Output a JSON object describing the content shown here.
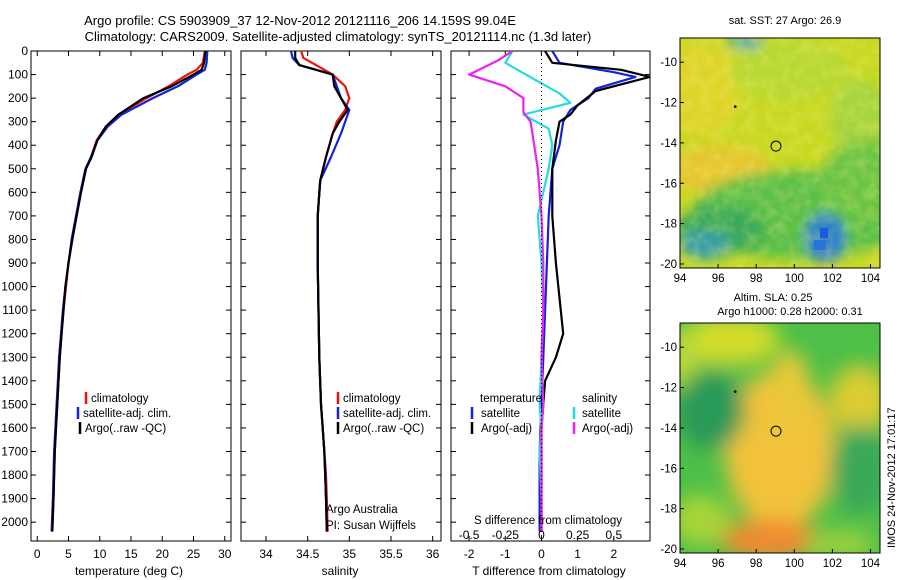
{
  "header": {
    "line1": "Argo profile: CS 5903909_37 12-Nov-2012 20121116_206 14.159S 99.04E",
    "line2": "Climatology: CARS2009. Satellite-adjusted climatology: synTS_20121114.nc (1.3d later)"
  },
  "colors": {
    "climatology": "#ee1111",
    "satellite": "#1122dd",
    "argo": "#000000",
    "sat_salt": "#22dddd",
    "argo_salt": "#ee22ee"
  },
  "side_label": "IMOS 24-Nov-2012 17:01:17",
  "chart_data": [
    {
      "type": "line",
      "id": "temperature-profile",
      "xlabel": "temperature (deg C)",
      "ylabel": "",
      "xlim": [
        -1,
        31
      ],
      "ylim": [
        2080,
        0
      ],
      "xticks": [
        0,
        5,
        10,
        15,
        20,
        25,
        30
      ],
      "yticks": [
        0,
        100,
        200,
        300,
        400,
        500,
        600,
        700,
        800,
        900,
        1000,
        1100,
        1200,
        1300,
        1400,
        1500,
        1600,
        1700,
        1800,
        1900,
        2000
      ],
      "legend": [
        "climatology",
        "satellite-adj. clim.",
        "Argo(..raw -QC)"
      ],
      "legend_placement": "lower-right",
      "series": [
        {
          "name": "climatology",
          "x": [
            26.8,
            26.5,
            25.5,
            24.0,
            21.0,
            17.5,
            13.0,
            11.0,
            9.5,
            8.6,
            7.8,
            7.0,
            6.3,
            5.6,
            5.0,
            4.6,
            4.2,
            3.9,
            3.6,
            3.4,
            3.2,
            3.0,
            2.8,
            2.6,
            2.4
          ],
          "y": [
            0,
            50,
            80,
            100,
            150,
            200,
            270,
            320,
            380,
            450,
            500,
            600,
            700,
            800,
            900,
            1000,
            1100,
            1200,
            1300,
            1400,
            1500,
            1600,
            1700,
            1900,
            2040
          ]
        },
        {
          "name": "satellite-adj. clim.",
          "x": [
            27.2,
            27.1,
            26.8,
            25.5,
            22.5,
            18.5,
            13.5,
            11.3,
            9.6,
            8.6,
            7.7,
            6.9,
            6.2,
            5.5,
            5.0,
            4.5,
            4.1,
            3.8,
            3.5,
            3.3,
            3.1,
            2.9,
            2.7,
            2.5,
            2.3
          ],
          "y": [
            0,
            50,
            80,
            100,
            150,
            200,
            270,
            320,
            380,
            450,
            500,
            600,
            700,
            800,
            900,
            1000,
            1100,
            1200,
            1300,
            1400,
            1500,
            1600,
            1700,
            1900,
            2040
          ]
        },
        {
          "name": "Argo(..raw -QC)",
          "x": [
            26.9,
            26.7,
            26.3,
            25.0,
            21.5,
            17.0,
            13.0,
            11.0,
            9.6,
            8.7,
            7.8,
            7.0,
            6.3,
            5.6,
            5.0,
            4.5,
            4.2,
            3.9,
            3.6,
            3.4,
            3.2,
            3.0,
            2.8,
            2.6,
            2.4
          ],
          "y": [
            0,
            50,
            80,
            100,
            150,
            200,
            270,
            320,
            380,
            450,
            500,
            600,
            700,
            800,
            900,
            1000,
            1100,
            1200,
            1300,
            1400,
            1500,
            1600,
            1700,
            1900,
            2040
          ]
        }
      ]
    },
    {
      "type": "line",
      "id": "salinity-profile",
      "xlabel": "salinity",
      "xlim": [
        33.7,
        36.1
      ],
      "ylim": [
        2080,
        0
      ],
      "xticks": [
        34,
        34.5,
        35,
        35.5,
        36
      ],
      "legend": [
        "climatology",
        "satellite-adj. clim.",
        "Argo(..raw -QC)"
      ],
      "legend_placement": "lower-right",
      "annotations": [
        "Argo Australia",
        "PI: Susan Wijffels"
      ],
      "series": [
        {
          "name": "climatology",
          "x": [
            34.42,
            34.45,
            34.6,
            34.8,
            34.95,
            35.0,
            34.95,
            34.85,
            34.8,
            34.72,
            34.65,
            34.62,
            34.62,
            34.63,
            34.64,
            34.66,
            34.68,
            34.7,
            34.72,
            34.73,
            34.74
          ],
          "y": [
            0,
            30,
            60,
            100,
            150,
            200,
            250,
            300,
            350,
            450,
            550,
            700,
            900,
            1100,
            1300,
            1500,
            1600,
            1700,
            1800,
            1900,
            2040
          ]
        },
        {
          "name": "satellite-adj. clim.",
          "x": [
            34.3,
            34.32,
            34.4,
            34.8,
            34.85,
            34.9,
            35.0,
            34.95,
            34.9,
            34.78,
            34.65,
            34.62,
            34.62,
            34.63,
            34.64,
            34.66,
            34.68,
            34.7,
            34.71,
            34.72,
            34.73
          ],
          "y": [
            0,
            30,
            60,
            100,
            150,
            200,
            250,
            300,
            350,
            450,
            550,
            700,
            900,
            1100,
            1300,
            1500,
            1600,
            1700,
            1800,
            1900,
            2040
          ]
        },
        {
          "name": "Argo(..raw -QC)",
          "x": [
            34.35,
            34.35,
            34.4,
            34.8,
            34.82,
            34.9,
            34.98,
            34.88,
            34.8,
            34.72,
            34.65,
            34.62,
            34.62,
            34.63,
            34.64,
            34.66,
            34.68,
            34.7,
            34.71,
            34.72,
            34.73
          ],
          "y": [
            0,
            30,
            60,
            100,
            150,
            200,
            250,
            300,
            350,
            450,
            550,
            700,
            900,
            1100,
            1300,
            1500,
            1600,
            1700,
            1800,
            1900,
            2040
          ]
        }
      ]
    },
    {
      "type": "line",
      "id": "difference-profile",
      "xlabel": "T difference from climatology",
      "xlabel_top": "S difference from climatology",
      "xlim": [
        -2.5,
        3.0
      ],
      "ylim": [
        2080,
        0
      ],
      "xticks": [
        -2,
        -1,
        0,
        1,
        2
      ],
      "xticks_secondary": [
        "-0.5",
        "-0.25",
        "0",
        "0.25",
        "0.5"
      ],
      "xticks_secondary_pos": [
        -2,
        -1,
        0,
        1,
        2
      ],
      "legend_groups": [
        {
          "title": "temperature",
          "items": [
            "satellite",
            "Argo(-adj)"
          ]
        },
        {
          "title": "salinity",
          "items": [
            "satellite",
            "Argo(-adj)"
          ]
        }
      ],
      "legend_placement": "lower-center",
      "series": [
        {
          "name": "satellite",
          "group": "temperature",
          "x": [
            0.3,
            0.5,
            2.0,
            2.6,
            1.5,
            1.3,
            0.8,
            0.6,
            0.5,
            0.3,
            0.2,
            0.15,
            0.1,
            0.05,
            0.0,
            -0.05,
            -0.05,
            -0.05
          ],
          "y": [
            0,
            50,
            90,
            110,
            160,
            200,
            250,
            300,
            400,
            500,
            700,
            900,
            1100,
            1300,
            1500,
            1700,
            1900,
            2040
          ]
        },
        {
          "name": "Argo(-adj)",
          "group": "temperature",
          "x": [
            0.1,
            0.3,
            2.2,
            3.0,
            1.5,
            1.0,
            0.8,
            0.5,
            0.4,
            0.3,
            0.3,
            0.4,
            0.6,
            0.4,
            0.1,
            0.0,
            0.0,
            0.0
          ],
          "y": [
            0,
            50,
            80,
            110,
            170,
            230,
            270,
            300,
            380,
            500,
            700,
            900,
            1200,
            1300,
            1400,
            1600,
            1800,
            2040
          ]
        },
        {
          "name": "satellite",
          "group": "salinity",
          "x": [
            -0.8,
            -1.0,
            -0.2,
            0.5,
            0.8,
            -0.5,
            0.2,
            0.3,
            0.2,
            -0.1,
            0.0,
            0.05,
            0.0,
            -0.05,
            0.0,
            -0.05,
            0.0,
            0.0
          ],
          "y": [
            0,
            50,
            120,
            180,
            220,
            270,
            330,
            400,
            500,
            700,
            900,
            1100,
            1300,
            1500,
            1600,
            1700,
            1900,
            2040
          ]
        },
        {
          "name": "Argo(-adj)",
          "group": "salinity",
          "x": [
            -0.8,
            -1.2,
            -2.0,
            -1.0,
            -0.5,
            -0.5,
            -0.3,
            -0.2,
            -0.1,
            0.0,
            0.05,
            0.05,
            0.0,
            0.05,
            0.0,
            0.0,
            0.0,
            0.0
          ],
          "y": [
            0,
            40,
            100,
            150,
            200,
            260,
            300,
            400,
            500,
            700,
            900,
            1100,
            1300,
            1500,
            1600,
            1700,
            1900,
            2040
          ]
        }
      ]
    },
    {
      "type": "heatmap",
      "id": "sst-map",
      "title": "sat. SST: 27   Argo: 26.9",
      "xlim": [
        94,
        104.5
      ],
      "ylim": [
        -20.2,
        -8.8
      ],
      "xticks": [
        94,
        96,
        98,
        100,
        102,
        104
      ],
      "yticks": [
        -10,
        -12,
        -14,
        -16,
        -18,
        -20
      ],
      "colormap": "jet",
      "marker_circle": [
        99.04,
        -14.16
      ],
      "marker_dot": [
        96.9,
        -12.2
      ]
    },
    {
      "type": "heatmap",
      "id": "sla-map",
      "title": "Altim. SLA: 0.25",
      "subtitle": "Argo h1000: 0.28 h2000: 0.31",
      "xlim": [
        94,
        104.5
      ],
      "ylim": [
        -20.2,
        -8.8
      ],
      "xticks": [
        94,
        96,
        98,
        100,
        102,
        104
      ],
      "yticks": [
        -10,
        -12,
        -14,
        -16,
        -18,
        -20
      ],
      "colormap": "jet",
      "marker_circle": [
        99.04,
        -14.16
      ],
      "marker_dot": [
        96.9,
        -12.2
      ]
    }
  ]
}
